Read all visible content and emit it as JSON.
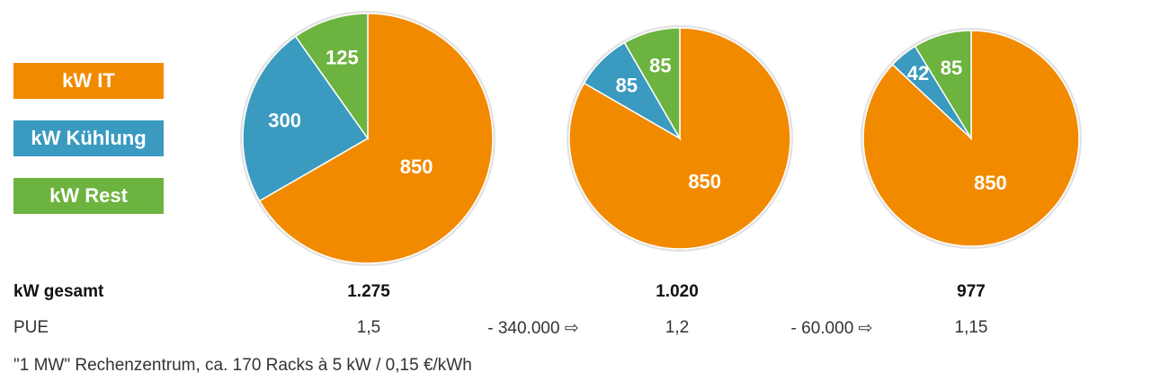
{
  "chart_data": [
    {
      "type": "pie",
      "categories": [
        "kW IT",
        "kW Kühlung",
        "kW Rest"
      ],
      "values": [
        850,
        300,
        125
      ],
      "labels": [
        "850",
        "300",
        "125"
      ]
    },
    {
      "type": "pie",
      "categories": [
        "kW IT",
        "kW Kühlung",
        "kW Rest"
      ],
      "values": [
        850,
        85,
        85
      ],
      "labels": [
        "850",
        "85",
        "85"
      ]
    },
    {
      "type": "pie",
      "categories": [
        "kW IT",
        "kW Kühlung",
        "kW Rest"
      ],
      "values": [
        850,
        42,
        85
      ],
      "labels": [
        "850",
        "42",
        "85"
      ]
    }
  ],
  "legend": [
    {
      "label": "kW IT",
      "color": "#F28A00"
    },
    {
      "label": "kW Kühlung",
      "color": "#3A9AC0"
    },
    {
      "label": "kW Rest",
      "color": "#6DB33F"
    }
  ],
  "table": {
    "total_label": "kW gesamt",
    "totals": [
      "1.275",
      "1.020",
      "977"
    ],
    "pue_label": "PUE",
    "pue_values": [
      "1,5",
      "1,2",
      "1,15"
    ],
    "savings": [
      "- 340.000 ⇨",
      "- 60.000 ⇨"
    ]
  },
  "footnote": "\"1 MW\" Rechenzentrum,  ca. 170 Racks à 5 kW / 0,15 €/kWh"
}
